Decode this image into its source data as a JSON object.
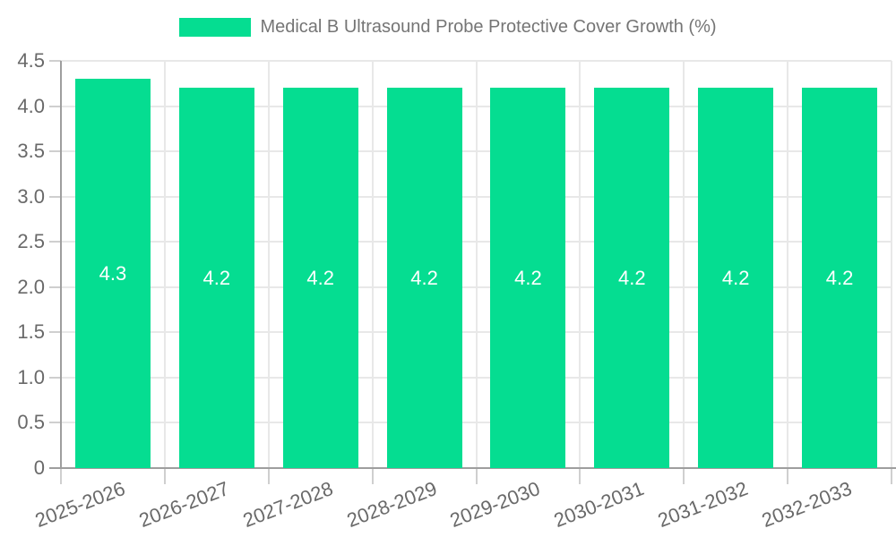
{
  "chart_data": {
    "type": "bar",
    "title": "Medical B Ultrasound Probe Protective Cover Growth (%)",
    "legend": {
      "position": "top-center",
      "label": "Medical B Ultrasound Probe Protective Cover Growth (%)"
    },
    "categories": [
      "2025-2026",
      "2026-2027",
      "2027-2028",
      "2028-2029",
      "2029-2030",
      "2030-2031",
      "2031-2032",
      "2032-2033"
    ],
    "series": [
      {
        "name": "Medical B Ultrasound Probe Protective Cover Growth (%)",
        "values": [
          4.3,
          4.2,
          4.2,
          4.2,
          4.2,
          4.2,
          4.2,
          4.2
        ]
      }
    ],
    "value_labels": [
      "4.3",
      "4.2",
      "4.2",
      "4.2",
      "4.2",
      "4.2",
      "4.2",
      "4.2"
    ],
    "xlabel": "",
    "ylabel": "",
    "ylim": [
      0,
      4.5
    ],
    "ytick_step": 0.5,
    "ytick_labels": [
      "0",
      "0.5",
      "1.0",
      "1.5",
      "2.0",
      "2.5",
      "3.0",
      "3.5",
      "4.0",
      "4.5"
    ],
    "grid": "horizontal and vertical gridlines on",
    "x_label_rotation_deg": -21,
    "colors": {
      "bar": "#05DD91",
      "value_label": "#ffffff",
      "gridline": "#e8e8e8",
      "axis_line": "#9e9e9e",
      "tick": "#cfcfcf",
      "axis_text": "#696969",
      "legend_text": "#757575",
      "background": "#ffffff"
    }
  }
}
